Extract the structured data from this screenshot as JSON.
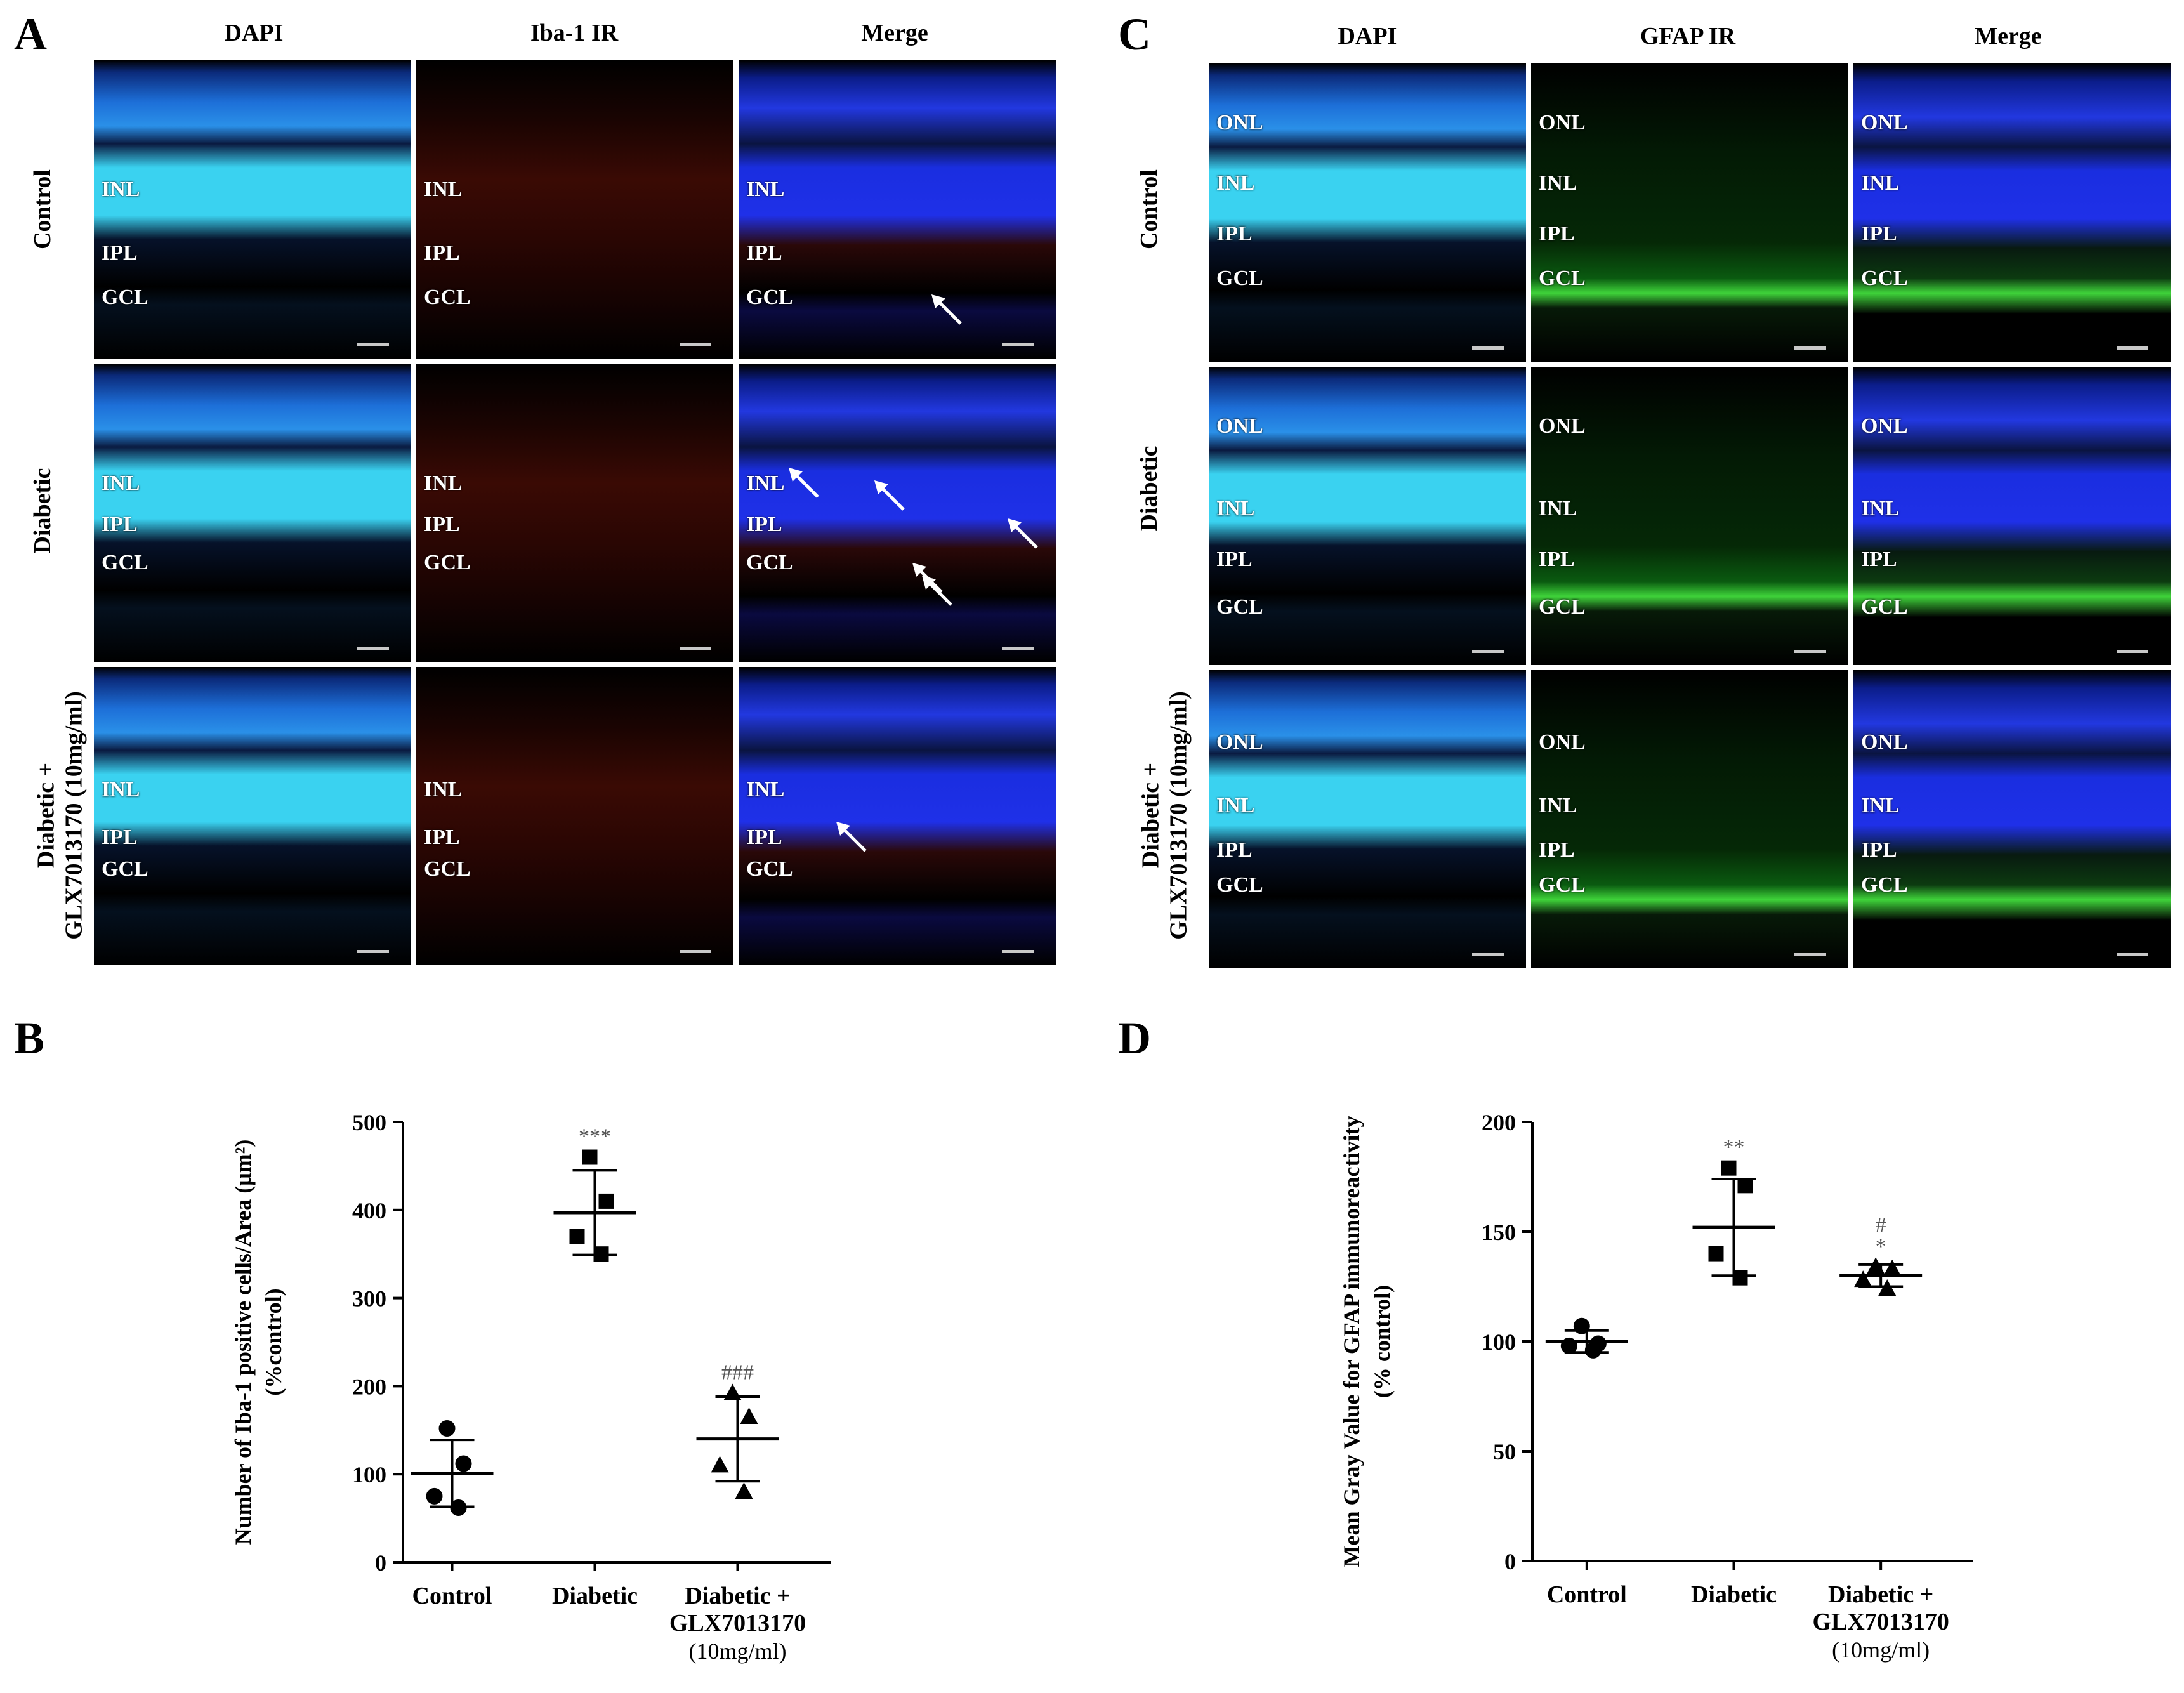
{
  "panels": {
    "A": {
      "letter": "A",
      "columns": [
        "DAPI",
        "Iba-1 IR",
        "Merge"
      ],
      "rows": [
        {
          "label": "Control"
        },
        {
          "label": "Diabetic"
        },
        {
          "label1": "Diabetic +",
          "label2": "GLX7013170 (10mg/ml)"
        }
      ],
      "layers": {
        "inl": "INL",
        "ipl": "IPL",
        "gcl": "GCL"
      }
    },
    "C": {
      "letter": "C",
      "columns": [
        "DAPI",
        "GFAP IR",
        "Merge"
      ],
      "rows": [
        {
          "label": "Control"
        },
        {
          "label": "Diabetic"
        },
        {
          "label1": "Diabetic +",
          "label2": "GLX7013170 (10mg/ml)"
        }
      ],
      "layers": {
        "onl": "ONL",
        "inl": "INL",
        "ipl": "IPL",
        "gcl": "GCL"
      }
    },
    "B": {
      "letter": "B"
    },
    "D": {
      "letter": "D"
    }
  },
  "colors": {
    "dapi": "#3ad2f0",
    "dapi_dark": "#1a4fd8",
    "iba": "#e02a10",
    "gfap": "#3fd43a",
    "merge_blue": "#1a2ee0"
  },
  "chart_data": [
    {
      "id": "B",
      "type": "scatter",
      "ylabel": "Number of Iba-1 positive cells/Area (μm²)",
      "ylabel2": "(%control)",
      "ylim": [
        0,
        500
      ],
      "yticks": [
        0,
        100,
        200,
        300,
        400,
        500
      ],
      "categories": [
        {
          "name": "Control",
          "name2": "",
          "name3": "",
          "marker": "circle",
          "points": [
            152,
            112,
            75,
            62
          ],
          "mean": 101,
          "sd": 38,
          "sig": ""
        },
        {
          "name": "Diabetic",
          "name2": "",
          "name3": "",
          "marker": "square",
          "points": [
            460,
            410,
            370,
            350
          ],
          "mean": 397,
          "sd": 48,
          "sig": "***"
        },
        {
          "name": "Diabetic +",
          "name2": "GLX7013170",
          "name3": "(10mg/ml)",
          "marker": "triangle",
          "points": [
            192,
            165,
            110,
            80
          ],
          "mean": 140,
          "sd": 48,
          "sig": "###"
        }
      ]
    },
    {
      "id": "D",
      "type": "scatter",
      "ylabel": "Mean Gray Value for GFAP immunoreactivity",
      "ylabel2": "(% control)",
      "ylim": [
        0,
        200
      ],
      "yticks": [
        0,
        50,
        100,
        150,
        200
      ],
      "categories": [
        {
          "name": "Control",
          "name2": "",
          "name3": "",
          "marker": "circle",
          "points": [
            107,
            99,
            98,
            96
          ],
          "mean": 100,
          "sd": 5,
          "sig": ""
        },
        {
          "name": "Diabetic",
          "name2": "",
          "name3": "",
          "marker": "square",
          "points": [
            179,
            171,
            140,
            129
          ],
          "mean": 152,
          "sd": 22,
          "sig": "**"
        },
        {
          "name": "Diabetic +",
          "name2": "GLX7013170",
          "name3": "(10mg/ml)",
          "marker": "triangle",
          "points": [
            134,
            133,
            128,
            124
          ],
          "mean": 130,
          "sd": 5,
          "sig": "#",
          "sig2": "*"
        }
      ]
    }
  ]
}
